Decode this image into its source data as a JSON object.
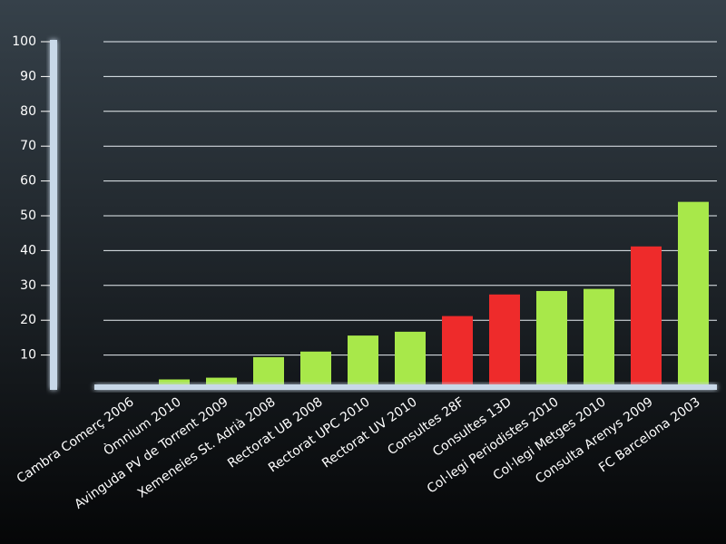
{
  "chart_data": {
    "type": "bar",
    "categories": [
      "Cambra Comerç 2006",
      "Òmnium 2010",
      "Avinguda PV de Torrent 2009",
      "Xemeneies St. Adrià 2008",
      "Rectorat UB 2008",
      "Rectorat UPC 2010",
      "Rectorat UV 2010",
      "Consultes 28F",
      "Consultes 13D",
      "Col·legi Periodistes 2010",
      "Col·legi Metges 2010",
      "Consulta Arenys 2009",
      "FC Barcelona 2003"
    ],
    "values": [
      0,
      3,
      3.5,
      9.4,
      11,
      15.6,
      16.7,
      21.2,
      27.4,
      28.4,
      29,
      41.2,
      54
    ],
    "colors": [
      "#a8e84a",
      "#a8e84a",
      "#a8e84a",
      "#a8e84a",
      "#a8e84a",
      "#a8e84a",
      "#a8e84a",
      "#ee2b2b",
      "#ee2b2b",
      "#a8e84a",
      "#a8e84a",
      "#ee2b2b",
      "#a8e84a"
    ],
    "ylim": [
      0,
      100
    ],
    "yticks": [
      10,
      20,
      30,
      40,
      50,
      60,
      70,
      80,
      90,
      100
    ],
    "grid": true
  }
}
